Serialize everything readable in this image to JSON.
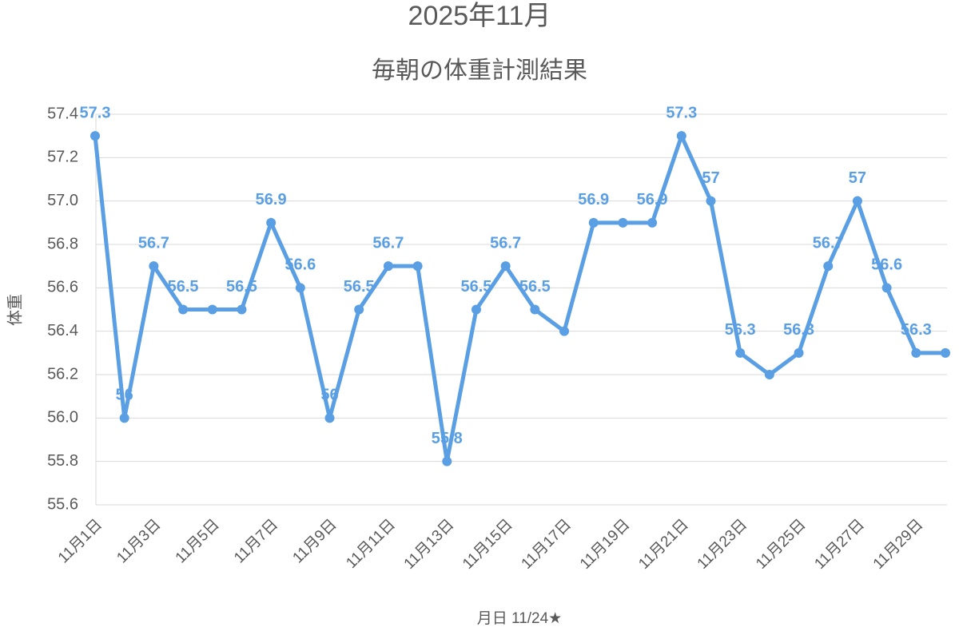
{
  "chart_data": {
    "type": "line",
    "title": "2025年11月",
    "subtitle": "毎朝の体重計測結果",
    "x_label": "月日 11/24★",
    "y_label": "体重",
    "categories": [
      "11月1日",
      null,
      "11月3日",
      null,
      "11月5日",
      null,
      "11月7日",
      null,
      "11月9日",
      null,
      "11月11日",
      null,
      "11月13日",
      null,
      "11月15日",
      null,
      "11月17日",
      null,
      "11月19日",
      null,
      "11月21日",
      null,
      "11月23日",
      null,
      "11月25日",
      null,
      "11月27日",
      null,
      "11月29日",
      null
    ],
    "values": [
      57.3,
      56.0,
      56.7,
      56.5,
      56.5,
      56.5,
      56.9,
      56.6,
      56.0,
      56.5,
      56.7,
      56.7,
      55.8,
      56.5,
      56.7,
      56.5,
      56.4,
      56.9,
      56.9,
      56.9,
      57.3,
      57.0,
      56.3,
      56.2,
      56.3,
      56.7,
      57.0,
      56.6,
      56.3,
      56.3
    ],
    "value_labels": [
      "57.3",
      "56",
      "56.7",
      "56.5",
      null,
      "56.5",
      "56.9",
      "56.6",
      "56",
      "56.5",
      "56.7",
      null,
      "55.8",
      "56.5",
      "56.7",
      "56.5",
      null,
      "56.9",
      null,
      "56.9",
      "57.3",
      "57",
      "56.3",
      null,
      "56.3",
      "56.7",
      "57",
      "56.6",
      "56.3",
      null
    ],
    "color": "#5a9fe4",
    "ylim": [
      55.6,
      57.4
    ],
    "yticks": [
      55.6,
      55.8,
      {
        "value": 56.0,
        "label": "56.0"
      },
      56.2,
      56.4,
      56.6,
      56.8,
      {
        "value": 57.0,
        "label": "57.0"
      },
      57.2,
      57.4
    ],
    "grid": true
  }
}
